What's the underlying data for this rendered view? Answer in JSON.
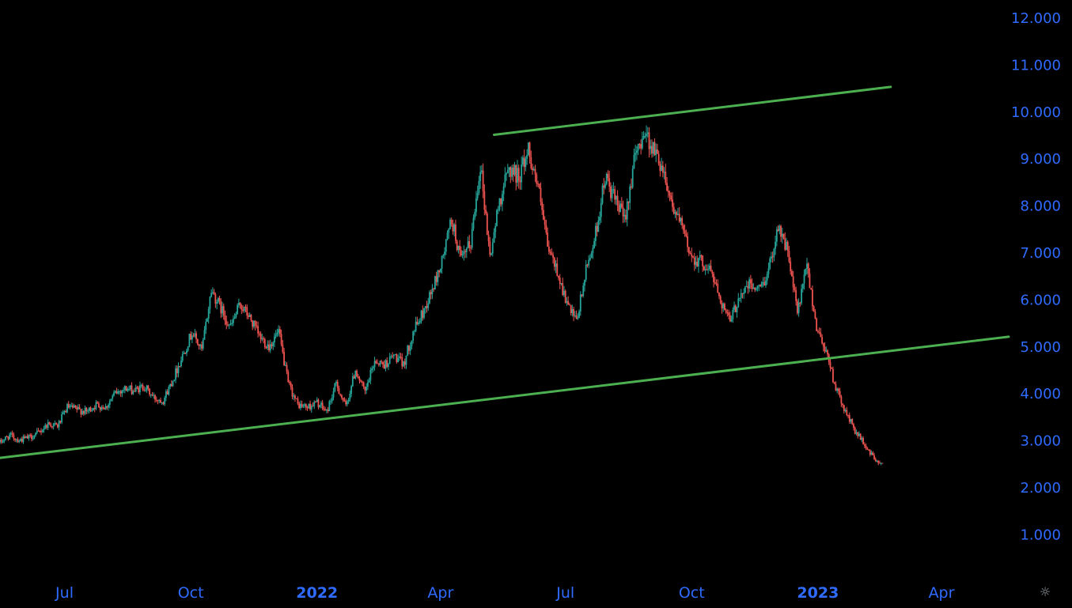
{
  "settings_icon": "gear-icon",
  "chart_data": {
    "type": "candlestick",
    "title": "",
    "xlabel": "",
    "ylabel": "",
    "ylim": [
      0.0,
      12.4
    ],
    "xlim": [
      "2021-05-15",
      "2023-05-20"
    ],
    "y_ticks": [
      "12.000",
      "11.000",
      "10.000",
      "9.000",
      "8.000",
      "7.000",
      "6.000",
      "5.000",
      "4.000",
      "3.000",
      "2.000",
      "1.000"
    ],
    "x_ticks": [
      {
        "label": "Jul",
        "date": "2021-07-01",
        "bold": false
      },
      {
        "label": "Oct",
        "date": "2021-10-01",
        "bold": false
      },
      {
        "label": "2022",
        "date": "2022-01-01",
        "bold": true
      },
      {
        "label": "Apr",
        "date": "2022-04-01",
        "bold": false
      },
      {
        "label": "Jul",
        "date": "2022-07-01",
        "bold": false
      },
      {
        "label": "Oct",
        "date": "2022-10-01",
        "bold": false
      },
      {
        "label": "2023",
        "date": "2023-01-01",
        "bold": true
      },
      {
        "label": "Apr",
        "date": "2023-04-01",
        "bold": false
      }
    ],
    "colors": {
      "up": "#26a69a",
      "down": "#ef5350",
      "trendline": "#4caf50",
      "axis_text": "#2f6bff",
      "background": "#000000"
    },
    "grid": false,
    "series": [
      {
        "values": [
          [
            "2021-05-15",
            2.95
          ],
          [
            "2021-05-22",
            3.1
          ],
          [
            "2021-05-29",
            3.0
          ],
          [
            "2021-06-05",
            3.05
          ],
          [
            "2021-06-12",
            3.15
          ],
          [
            "2021-06-19",
            3.35
          ],
          [
            "2021-06-26",
            3.3
          ],
          [
            "2021-07-03",
            3.7
          ],
          [
            "2021-07-10",
            3.65
          ],
          [
            "2021-07-17",
            3.6
          ],
          [
            "2021-07-24",
            3.75
          ],
          [
            "2021-07-31",
            3.7
          ],
          [
            "2021-08-07",
            4.0
          ],
          [
            "2021-08-14",
            4.1
          ],
          [
            "2021-08-21",
            4.05
          ],
          [
            "2021-08-28",
            4.15
          ],
          [
            "2021-09-04",
            3.9
          ],
          [
            "2021-09-11",
            3.85
          ],
          [
            "2021-09-18",
            4.3
          ],
          [
            "2021-09-25",
            4.8
          ],
          [
            "2021-10-02",
            5.3
          ],
          [
            "2021-10-09",
            4.9
          ],
          [
            "2021-10-16",
            6.2
          ],
          [
            "2021-10-23",
            5.8
          ],
          [
            "2021-10-30",
            5.4
          ],
          [
            "2021-11-06",
            5.9
          ],
          [
            "2021-11-13",
            5.6
          ],
          [
            "2021-11-20",
            5.2
          ],
          [
            "2021-11-27",
            5.0
          ],
          [
            "2021-12-04",
            5.3
          ],
          [
            "2021-12-11",
            4.2
          ],
          [
            "2021-12-18",
            3.75
          ],
          [
            "2021-12-25",
            3.7
          ],
          [
            "2022-01-01",
            3.8
          ],
          [
            "2022-01-08",
            3.6
          ],
          [
            "2022-01-15",
            4.2
          ],
          [
            "2022-01-22",
            3.7
          ],
          [
            "2022-01-29",
            4.5
          ],
          [
            "2022-02-05",
            4.0
          ],
          [
            "2022-02-12",
            4.7
          ],
          [
            "2022-02-19",
            4.6
          ],
          [
            "2022-02-26",
            4.8
          ],
          [
            "2022-03-05",
            4.6
          ],
          [
            "2022-03-12",
            5.3
          ],
          [
            "2022-03-19",
            5.7
          ],
          [
            "2022-03-26",
            6.2
          ],
          [
            "2022-04-02",
            6.8
          ],
          [
            "2022-04-09",
            7.7
          ],
          [
            "2022-04-16",
            6.8
          ],
          [
            "2022-04-23",
            7.2
          ],
          [
            "2022-04-30",
            8.9
          ],
          [
            "2022-05-07",
            6.9
          ],
          [
            "2022-05-14",
            8.1
          ],
          [
            "2022-05-21",
            8.8
          ],
          [
            "2022-05-28",
            8.6
          ],
          [
            "2022-06-04",
            9.2
          ],
          [
            "2022-06-11",
            8.4
          ],
          [
            "2022-06-18",
            7.1
          ],
          [
            "2022-06-25",
            6.6
          ],
          [
            "2022-07-02",
            5.9
          ],
          [
            "2022-07-09",
            5.5
          ],
          [
            "2022-07-16",
            6.6
          ],
          [
            "2022-07-23",
            7.4
          ],
          [
            "2022-07-30",
            8.6
          ],
          [
            "2022-08-06",
            8.1
          ],
          [
            "2022-08-13",
            7.7
          ],
          [
            "2022-08-20",
            8.9
          ],
          [
            "2022-08-27",
            9.6
          ],
          [
            "2022-09-03",
            9.2
          ],
          [
            "2022-09-10",
            8.8
          ],
          [
            "2022-09-17",
            8.0
          ],
          [
            "2022-09-24",
            7.5
          ],
          [
            "2022-10-01",
            6.9
          ],
          [
            "2022-10-08",
            6.8
          ],
          [
            "2022-10-15",
            6.6
          ],
          [
            "2022-10-22",
            6.0
          ],
          [
            "2022-10-29",
            5.5
          ],
          [
            "2022-11-05",
            6.1
          ],
          [
            "2022-11-12",
            6.3
          ],
          [
            "2022-11-19",
            6.2
          ],
          [
            "2022-11-26",
            6.6
          ],
          [
            "2022-12-03",
            7.6
          ],
          [
            "2022-12-10",
            7.0
          ],
          [
            "2022-12-17",
            5.7
          ],
          [
            "2022-12-24",
            6.7
          ],
          [
            "2022-12-31",
            5.4
          ],
          [
            "2023-01-07",
            4.9
          ],
          [
            "2023-01-14",
            4.1
          ],
          [
            "2023-01-21",
            3.6
          ],
          [
            "2023-01-28",
            3.2
          ],
          [
            "2023-02-04",
            2.9
          ],
          [
            "2023-02-11",
            2.6
          ],
          [
            "2023-02-18",
            2.45
          ]
        ]
      }
    ],
    "trendlines": [
      {
        "points": [
          [
            "2021-05-15",
            2.62
          ],
          [
            "2023-05-20",
            5.2
          ]
        ]
      },
      {
        "points": [
          [
            "2022-05-10",
            9.5
          ],
          [
            "2023-02-23",
            10.52
          ]
        ]
      }
    ]
  }
}
